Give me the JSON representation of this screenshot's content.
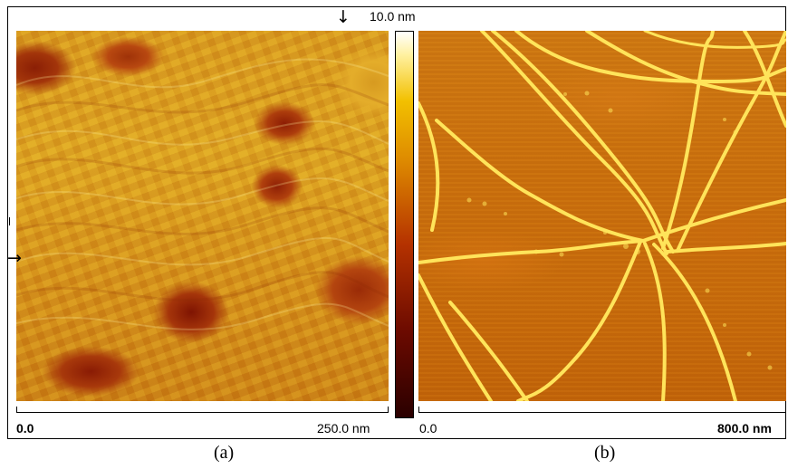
{
  "figure": {
    "panel_a": {
      "caption": "(a)",
      "scale_start": "0.0",
      "scale_end": "250.0 nm"
    },
    "panel_b": {
      "caption": "(b)",
      "scale_start": "0.0",
      "scale_end": "800.0 nm"
    },
    "colorbar": {
      "max_label": "10.0 nm"
    },
    "markers": {
      "down_arrow": "↓",
      "right_arrow": "→"
    },
    "colors": {
      "panel_a_base": "#d79a1d",
      "panel_b_base": "#c96f0d",
      "fiber_bright": "#ffe45a",
      "shadow_dark": "#8b1f05",
      "colorbar_bottom": "#2a0000",
      "colorbar_mid": "#dd8800",
      "colorbar_top": "#ffffff"
    }
  }
}
